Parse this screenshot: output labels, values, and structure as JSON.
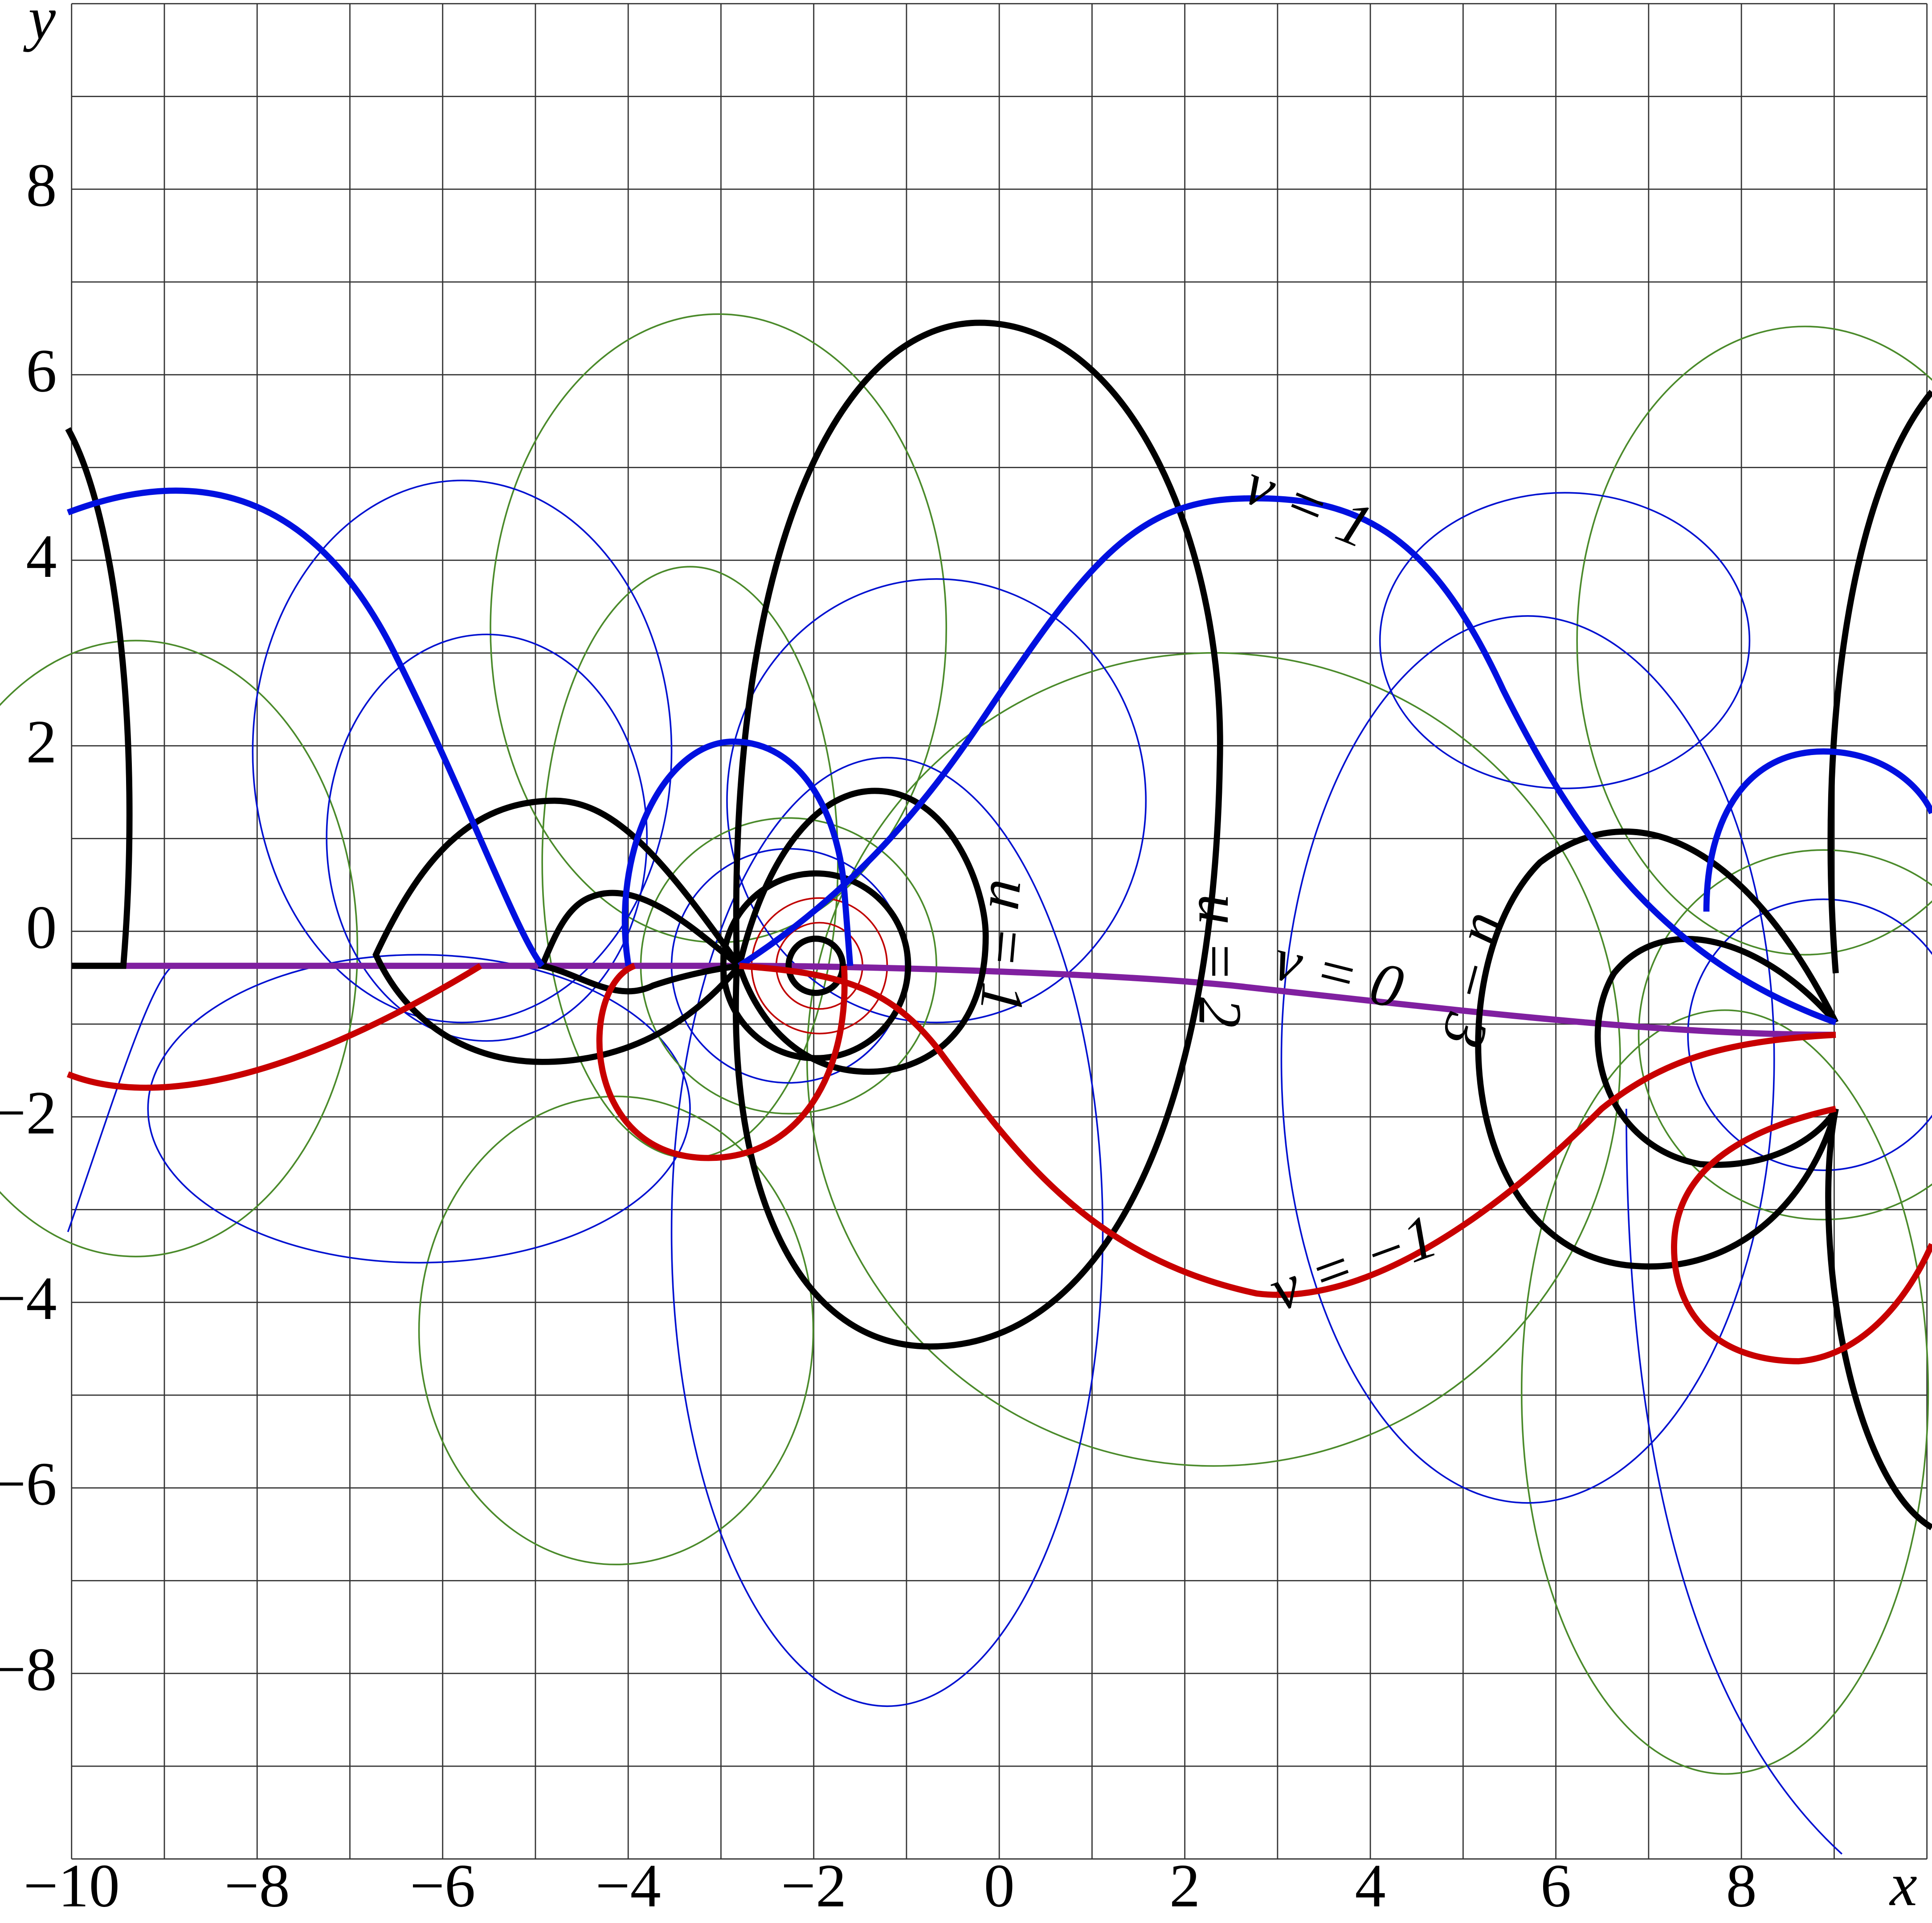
{
  "chart_data": {
    "type": "contour",
    "x_label": "x",
    "y_label": "y",
    "xlim": [
      -10,
      10
    ],
    "ylim": [
      -10,
      10
    ],
    "xticks": [
      {
        "value": -10,
        "label": "−10"
      },
      {
        "value": -8,
        "label": "−8"
      },
      {
        "value": -6,
        "label": "−6"
      },
      {
        "value": -4,
        "label": "−4"
      },
      {
        "value": -2,
        "label": "−2"
      },
      0,
      2,
      4,
      6,
      8
    ],
    "yticks": [
      {
        "value": -8,
        "label": "−8"
      },
      {
        "value": -6,
        "label": "−6"
      },
      {
        "value": -4,
        "label": "−4"
      },
      {
        "value": -2,
        "label": "−2"
      },
      0,
      2,
      4,
      6,
      8
    ],
    "grid": true,
    "curve_labels": [
      "v = 1",
      "v = 0",
      "v = −1",
      "u = 1",
      "u = 2",
      "u = 3"
    ]
  }
}
